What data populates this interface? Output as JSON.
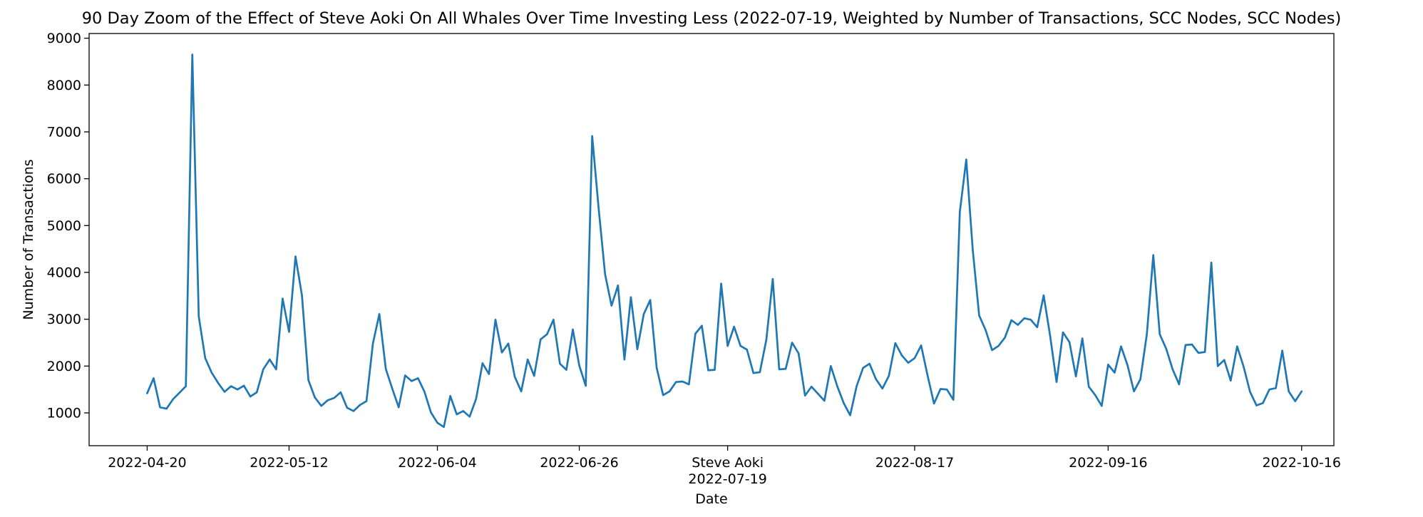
{
  "chart_data": {
    "type": "line",
    "title": "90 Day Zoom of the Effect of Steve Aoki On All Whales Over Time Investing Less (2022-07-19, Weighted by Number of Transactions, SCC Nodes, SCC Nodes)",
    "xlabel": "Date",
    "ylabel": "Number of Transactions",
    "xlim": [
      "2022-04-11",
      "2022-10-21"
    ],
    "ylim": [
      300,
      9100
    ],
    "grid": false,
    "line_color": "#1f77b4",
    "x_ticks": [
      {
        "date": "2022-04-20",
        "label": "2022-04-20",
        "sublabel": ""
      },
      {
        "date": "2022-05-12",
        "label": "2022-05-12",
        "sublabel": ""
      },
      {
        "date": "2022-06-04",
        "label": "2022-06-04",
        "sublabel": ""
      },
      {
        "date": "2022-06-26",
        "label": "2022-06-26",
        "sublabel": ""
      },
      {
        "date": "2022-07-19",
        "label": "Steve Aoki",
        "sublabel": "2022-07-19"
      },
      {
        "date": "2022-08-17",
        "label": "2022-08-17",
        "sublabel": ""
      },
      {
        "date": "2022-09-16",
        "label": "2022-09-16",
        "sublabel": ""
      },
      {
        "date": "2022-10-16",
        "label": "2022-10-16",
        "sublabel": ""
      }
    ],
    "y_ticks": [
      1000,
      2000,
      3000,
      4000,
      5000,
      6000,
      7000,
      8000,
      9000
    ],
    "series": [
      {
        "start_date": "2022-04-20",
        "values": [
          1420,
          1740,
          1120,
          1090,
          1290,
          1430,
          1570,
          8650,
          3060,
          2170,
          1860,
          1640,
          1450,
          1570,
          1500,
          1580,
          1350,
          1440,
          1930,
          2140,
          1930,
          3440,
          2730,
          4340,
          3510,
          1700,
          1330,
          1150,
          1270,
          1320,
          1440,
          1110,
          1040,
          1170,
          1250,
          2480,
          3110,
          1940,
          1520,
          1120,
          1800,
          1680,
          1740,
          1450,
          1010,
          790,
          700,
          1360,
          970,
          1040,
          920,
          1300,
          2060,
          1830,
          2990,
          2290,
          2480,
          1770,
          1460,
          2140,
          1790,
          2570,
          2680,
          2990,
          2050,
          1920,
          2780,
          2010,
          1580,
          6910,
          5370,
          3960,
          3290,
          3720,
          2140,
          3470,
          2360,
          3110,
          3410,
          1960,
          1380,
          1460,
          1660,
          1670,
          1610,
          2690,
          2860,
          1910,
          1920,
          3760,
          2430,
          2840,
          2430,
          2350,
          1850,
          1870,
          2560,
          3860,
          1930,
          1940,
          2500,
          2270,
          1370,
          1560,
          1410,
          1260,
          2000,
          1570,
          1210,
          950,
          1570,
          1960,
          2050,
          1720,
          1520,
          1790,
          2490,
          2230,
          2070,
          2170,
          2440,
          1800,
          1200,
          1510,
          1500,
          1280,
          5290,
          6410,
          4490,
          3080,
          2770,
          2340,
          2430,
          2610,
          2980,
          2880,
          3020,
          2990,
          2830,
          3510,
          2650,
          1660,
          2720,
          2510,
          1780,
          2590,
          1560,
          1380,
          1150,
          2030,
          1860,
          2420,
          2020,
          1460,
          1720,
          2680,
          4370,
          2680,
          2370,
          1930,
          1610,
          2450,
          2460,
          2280,
          2300,
          4210,
          2000,
          2130,
          1690,
          2420,
          1990,
          1450,
          1160,
          1210,
          1500,
          1530,
          2330,
          1460,
          1250,
          1460
        ]
      }
    ]
  }
}
